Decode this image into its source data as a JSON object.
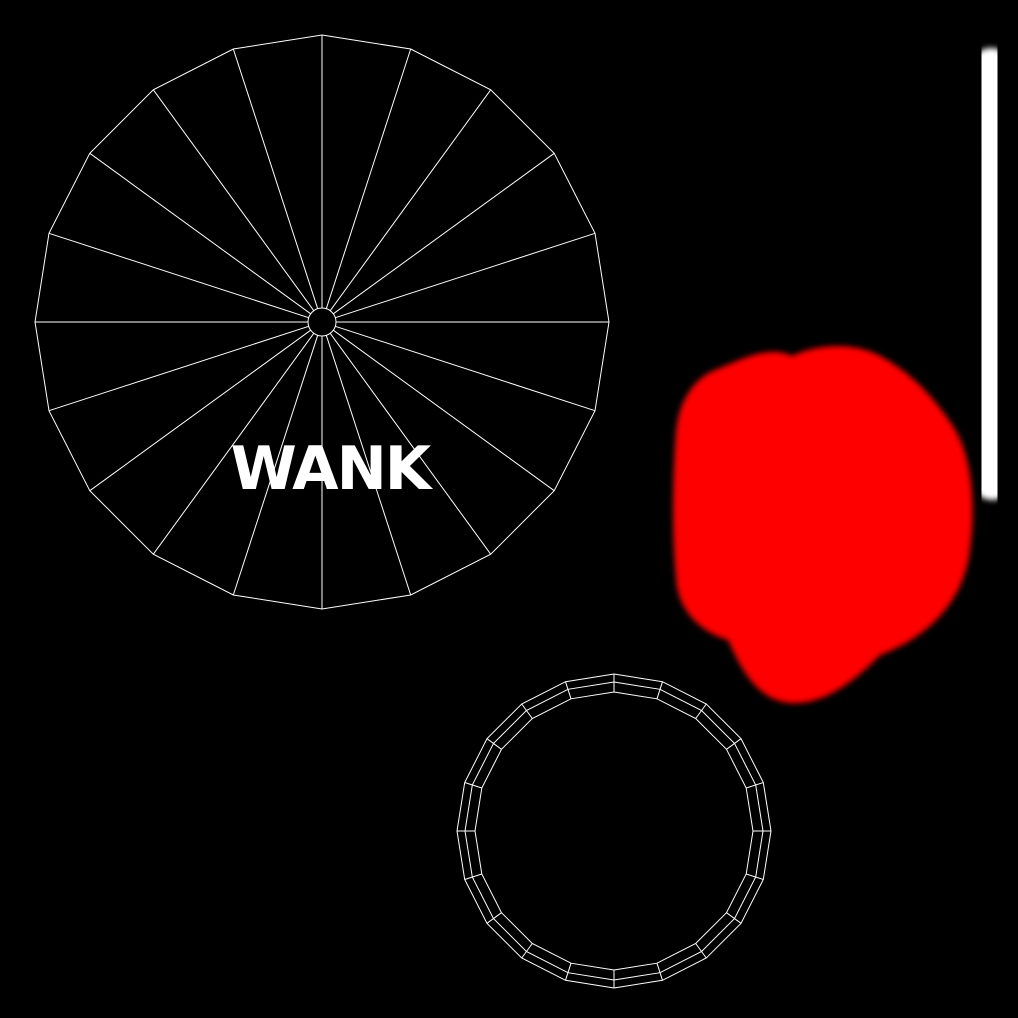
{
  "canvas": {
    "background": "#000000"
  },
  "wheel": {
    "stroke": "#ffffff",
    "segments": 20,
    "label": "WANK",
    "label_color": "#ffffff"
  },
  "ring": {
    "stroke": "#ffffff",
    "segments": 20,
    "bands": 3
  },
  "paint": {
    "red_color": "#ff0000",
    "white_color": "#ffffff"
  }
}
